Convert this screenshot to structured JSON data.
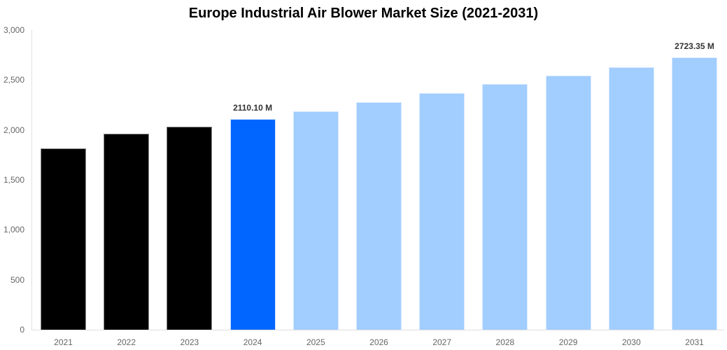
{
  "chart_data": {
    "type": "bar",
    "title": "Europe Industrial Air Blower Market Size (2021-2031)",
    "xlabel": "",
    "ylabel": "",
    "ylim": [
      0,
      3000
    ],
    "yticks": [
      "0",
      "500",
      "1,000",
      "1,500",
      "2,000",
      "2,500",
      "3,000"
    ],
    "grid": false,
    "legend": null,
    "categories": [
      "2021",
      "2022",
      "2023",
      "2024",
      "2025",
      "2026",
      "2027",
      "2028",
      "2029",
      "2030",
      "2031"
    ],
    "values": [
      1813,
      1960,
      2030,
      2110.1,
      2187,
      2278,
      2369,
      2460,
      2547,
      2631,
      2723.35
    ],
    "bar_styles": [
      "historical",
      "historical",
      "historical",
      "current",
      "forecast",
      "forecast",
      "forecast",
      "forecast",
      "forecast",
      "forecast",
      "forecast"
    ],
    "annotations": [
      {
        "category": "2024",
        "text": "2110.10 M"
      },
      {
        "category": "2031",
        "text": "2723.35 M"
      }
    ],
    "colors": {
      "historical": "#000000",
      "current": "#0066ff",
      "forecast": "#a1cdff"
    }
  }
}
